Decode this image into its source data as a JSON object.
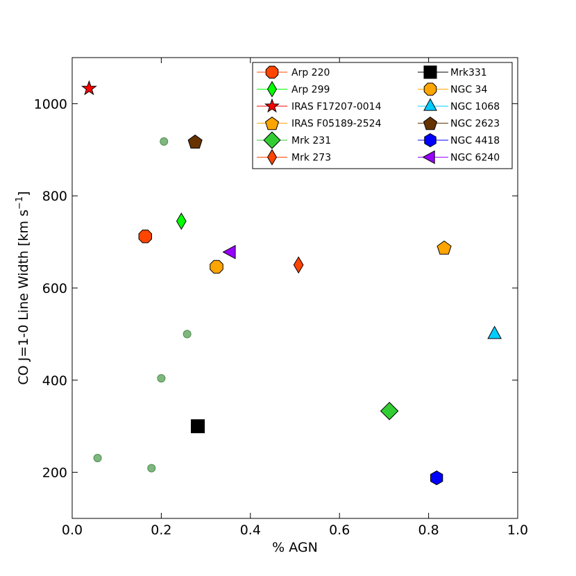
{
  "chart_data": {
    "type": "scatter",
    "xlabel": "% AGN",
    "ylabel": "CO J=1-0 Line Width [km s",
    "ylabel_sup": "−1",
    "ylabel_end": "]",
    "xlim": [
      0.0,
      1.0
    ],
    "ylim": [
      100,
      1100
    ],
    "x_ticks": [
      0.0,
      0.2,
      0.4,
      0.6,
      0.8,
      1.0
    ],
    "x_tick_labels": [
      "0.0",
      "0.2",
      "0.4",
      "0.6",
      "0.8",
      "1.0"
    ],
    "y_ticks": [
      200,
      400,
      600,
      800,
      1000
    ],
    "y_tick_labels": [
      "200",
      "400",
      "600",
      "800",
      "1000"
    ],
    "grid": false,
    "legend_position": "top-right",
    "legend_columns": 2,
    "series": [
      {
        "name": "Arp 220",
        "marker": "octagon",
        "color": "#ff4500",
        "x": [
          0.164
        ],
        "y": [
          712
        ]
      },
      {
        "name": "Arp 299",
        "marker": "thin-diamond",
        "color": "#00ff00",
        "x": [
          0.245
        ],
        "y": [
          745
        ]
      },
      {
        "name": "IRAS F17207-0014",
        "marker": "star",
        "color": "#ff0000",
        "x": [
          0.038
        ],
        "y": [
          1033
        ]
      },
      {
        "name": "IRAS F05189-2524",
        "marker": "pentagon",
        "color": "#ffa500",
        "x": [
          0.835
        ],
        "y": [
          688
        ]
      },
      {
        "name": "Mrk 231",
        "marker": "diamond",
        "color": "#32cd32",
        "x": [
          0.712
        ],
        "y": [
          333
        ]
      },
      {
        "name": "Mrk 273",
        "marker": "thin-diamond",
        "color": "#ff4500",
        "x": [
          0.508
        ],
        "y": [
          650
        ]
      },
      {
        "name": "Mrk331",
        "marker": "square",
        "color": "#000000",
        "x": [
          0.282
        ],
        "y": [
          300
        ]
      },
      {
        "name": "NGC 34",
        "marker": "octagon",
        "color": "#ffa500",
        "x": [
          0.324
        ],
        "y": [
          646
        ]
      },
      {
        "name": "NGC 1068",
        "marker": "triangle-up",
        "color": "#00ccff",
        "x": [
          0.948
        ],
        "y": [
          500
        ]
      },
      {
        "name": "NGC 2623",
        "marker": "pentagon",
        "color": "#663300",
        "x": [
          0.276
        ],
        "y": [
          918
        ]
      },
      {
        "name": "NGC 4418",
        "marker": "hexagon",
        "color": "#0000ff",
        "x": [
          0.818
        ],
        "y": [
          188
        ]
      },
      {
        "name": "NGC 6240",
        "marker": "triangle-left",
        "color": "#9900ff",
        "x": [
          0.356
        ],
        "y": [
          678
        ]
      }
    ],
    "background_points": {
      "color": "#7fb77f",
      "x": [
        0.206,
        0.258,
        0.2,
        0.057,
        0.178
      ],
      "y": [
        918,
        500,
        404,
        231,
        209
      ]
    }
  }
}
